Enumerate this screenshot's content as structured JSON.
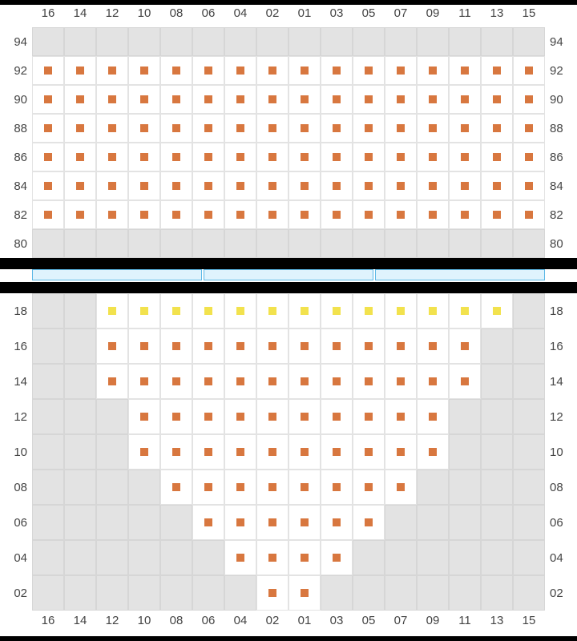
{
  "layout": {
    "cell_border_color": "#e3e3e3",
    "seat_bg": "#ffffff",
    "empty_bg": "#e3e3e3",
    "band_color": "#000000",
    "stage_segment_fill": "#dff3fd",
    "stage_segment_border": "#5cb8e6",
    "label_color": "#444444",
    "label_fontsize": 15
  },
  "seat_colors": {
    "orange": "#d8773f",
    "yellow": "#f2e24d"
  },
  "columns": [
    "16",
    "14",
    "12",
    "10",
    "08",
    "06",
    "04",
    "02",
    "01",
    "03",
    "05",
    "07",
    "09",
    "11",
    "13",
    "15"
  ],
  "top_section": {
    "rows": [
      "94",
      "92",
      "90",
      "88",
      "86",
      "84",
      "82",
      "80"
    ],
    "seats": {
      "94": [],
      "92": {
        "all": "orange"
      },
      "90": {
        "all": "orange"
      },
      "88": {
        "all": "orange"
      },
      "86": {
        "all": "orange"
      },
      "84": {
        "all": "orange"
      },
      "82": {
        "all": "orange"
      },
      "80": []
    }
  },
  "stage_segments": 3,
  "bottom_section": {
    "rows": [
      "18",
      "16",
      "14",
      "12",
      "10",
      "08",
      "06",
      "04",
      "02"
    ],
    "seats": {
      "18": {
        "range": [
          2,
          14
        ],
        "color": "yellow"
      },
      "16": {
        "range": [
          2,
          13
        ],
        "color": "orange"
      },
      "14": {
        "range": [
          2,
          13
        ],
        "color": "orange"
      },
      "12": {
        "range": [
          3,
          12
        ],
        "color": "orange"
      },
      "10": {
        "range": [
          3,
          12
        ],
        "color": "orange"
      },
      "08": {
        "range": [
          4,
          11
        ],
        "color": "orange"
      },
      "06": {
        "range": [
          5,
          10
        ],
        "color": "orange"
      },
      "04": {
        "range": [
          6,
          9
        ],
        "color": "orange"
      },
      "02": {
        "range": [
          7,
          8
        ],
        "color": "orange"
      }
    }
  }
}
